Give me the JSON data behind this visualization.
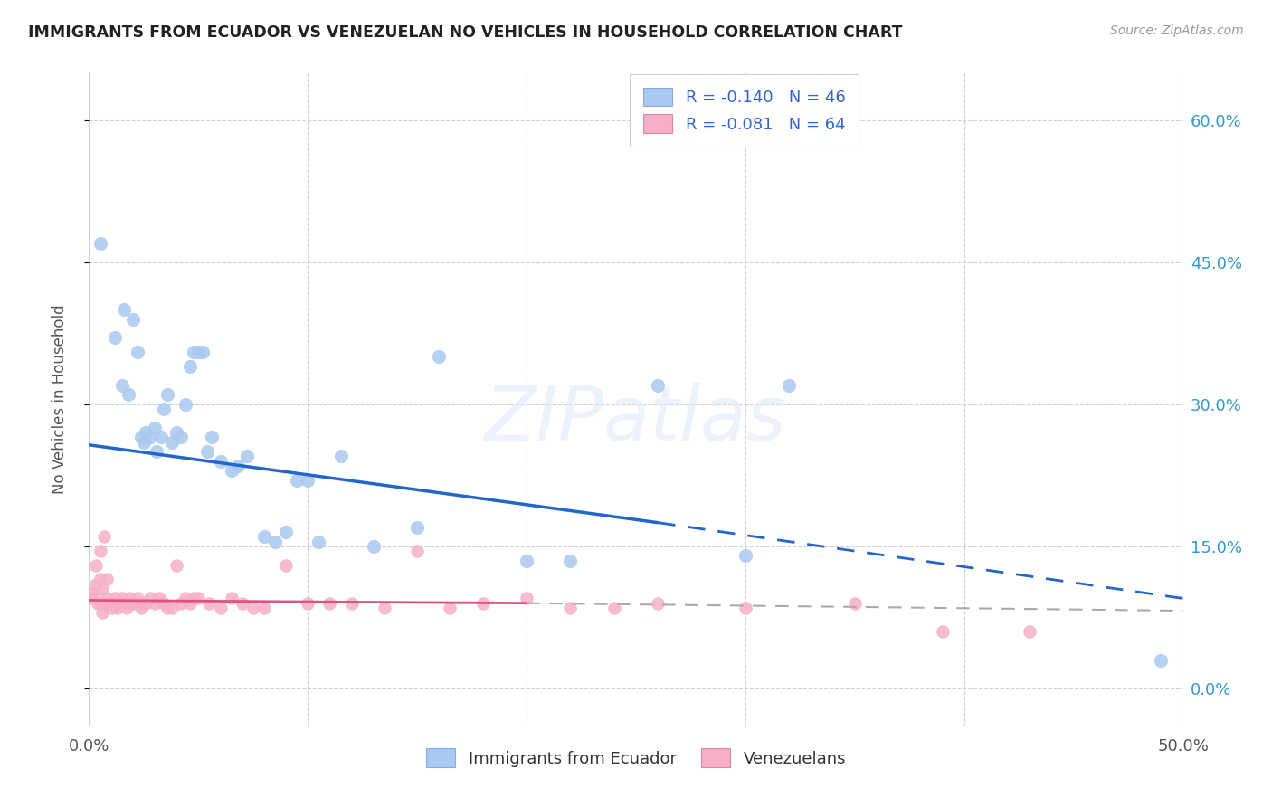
{
  "title": "IMMIGRANTS FROM ECUADOR VS VENEZUELAN NO VEHICLES IN HOUSEHOLD CORRELATION CHART",
  "source": "Source: ZipAtlas.com",
  "ylabel": "No Vehicles in Household",
  "xmin": 0.0,
  "xmax": 0.5,
  "ymin": -0.04,
  "ymax": 0.65,
  "yticks": [
    0.0,
    0.15,
    0.3,
    0.45,
    0.6
  ],
  "xticks": [
    0.0,
    0.1,
    0.2,
    0.3,
    0.4,
    0.5
  ],
  "xtick_labels": [
    "0.0%",
    "",
    "",
    "",
    "",
    "50.0%"
  ],
  "ecuador_color": "#aac8f0",
  "venezuela_color": "#f5b0c5",
  "ecuador_line_color": "#2266cc",
  "venezuela_line_color": "#e05080",
  "ecuador_R": -0.14,
  "ecuador_N": 46,
  "venezuela_R": -0.081,
  "venezuela_N": 64,
  "legend_label1": "R = -0.140   N = 46",
  "legend_label2": "R = -0.081   N = 64",
  "legend_label_bottom1": "Immigrants from Ecuador",
  "legend_label_bottom2": "Venezuelans",
  "ecuador_x": [
    0.005,
    0.012,
    0.015,
    0.016,
    0.018,
    0.02,
    0.022,
    0.024,
    0.025,
    0.026,
    0.028,
    0.03,
    0.031,
    0.033,
    0.034,
    0.036,
    0.038,
    0.04,
    0.042,
    0.044,
    0.046,
    0.048,
    0.05,
    0.052,
    0.054,
    0.056,
    0.06,
    0.065,
    0.068,
    0.072,
    0.08,
    0.085,
    0.09,
    0.095,
    0.1,
    0.105,
    0.115,
    0.13,
    0.15,
    0.16,
    0.2,
    0.22,
    0.26,
    0.3,
    0.32,
    0.49
  ],
  "ecuador_y": [
    0.47,
    0.37,
    0.32,
    0.4,
    0.31,
    0.39,
    0.355,
    0.265,
    0.26,
    0.27,
    0.265,
    0.275,
    0.25,
    0.265,
    0.295,
    0.31,
    0.26,
    0.27,
    0.265,
    0.3,
    0.34,
    0.355,
    0.355,
    0.355,
    0.25,
    0.265,
    0.24,
    0.23,
    0.235,
    0.245,
    0.16,
    0.155,
    0.165,
    0.22,
    0.22,
    0.155,
    0.245,
    0.15,
    0.17,
    0.35,
    0.135,
    0.135,
    0.32,
    0.14,
    0.32,
    0.03
  ],
  "venezuela_x": [
    0.001,
    0.002,
    0.003,
    0.004,
    0.005,
    0.005,
    0.006,
    0.006,
    0.007,
    0.008,
    0.008,
    0.009,
    0.01,
    0.011,
    0.012,
    0.013,
    0.014,
    0.015,
    0.016,
    0.017,
    0.018,
    0.019,
    0.02,
    0.022,
    0.023,
    0.024,
    0.026,
    0.028,
    0.03,
    0.032,
    0.034,
    0.036,
    0.038,
    0.04,
    0.042,
    0.044,
    0.046,
    0.048,
    0.05,
    0.055,
    0.06,
    0.065,
    0.07,
    0.075,
    0.08,
    0.09,
    0.1,
    0.11,
    0.12,
    0.135,
    0.15,
    0.165,
    0.18,
    0.2,
    0.22,
    0.24,
    0.26,
    0.3,
    0.35,
    0.39,
    0.003,
    0.005,
    0.007,
    0.43
  ],
  "venezuela_y": [
    0.095,
    0.1,
    0.11,
    0.09,
    0.09,
    0.115,
    0.08,
    0.105,
    0.09,
    0.095,
    0.115,
    0.09,
    0.085,
    0.09,
    0.095,
    0.085,
    0.09,
    0.095,
    0.09,
    0.085,
    0.09,
    0.095,
    0.09,
    0.095,
    0.09,
    0.085,
    0.09,
    0.095,
    0.09,
    0.095,
    0.09,
    0.085,
    0.085,
    0.13,
    0.09,
    0.095,
    0.09,
    0.095,
    0.095,
    0.09,
    0.085,
    0.095,
    0.09,
    0.085,
    0.085,
    0.13,
    0.09,
    0.09,
    0.09,
    0.085,
    0.145,
    0.085,
    0.09,
    0.095,
    0.085,
    0.085,
    0.09,
    0.085,
    0.09,
    0.06,
    0.13,
    0.145,
    0.16,
    0.06
  ],
  "watermark": "ZIPatlas",
  "background_color": "#ffffff",
  "grid_color": "#d0d0d0",
  "title_color": "#222222",
  "label_color": "#3366cc",
  "axis_color": "#3399cc"
}
